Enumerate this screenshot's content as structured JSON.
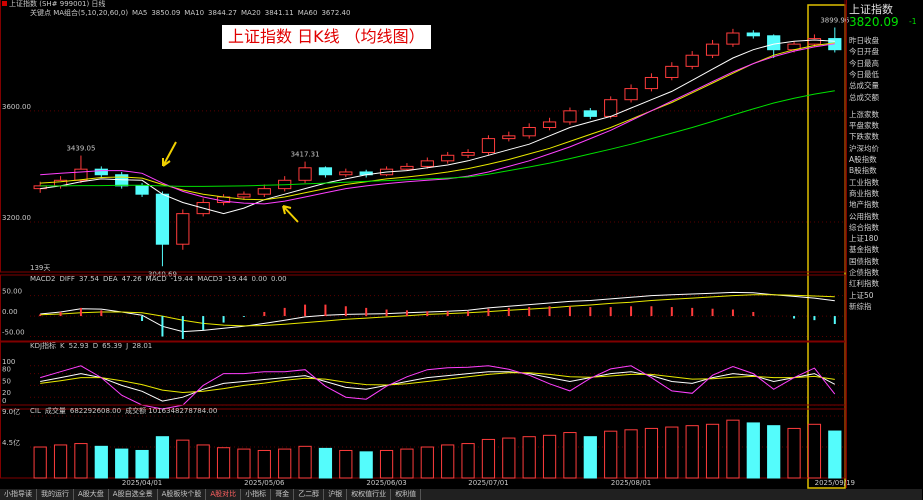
{
  "header": "上证指数 (SH# 999001) 日线",
  "overlay_title": "上证指数 日K线 （均线图）",
  "quote": {
    "name": "上证指数",
    "price": "3820.09",
    "change": "-1"
  },
  "quote_items": [
    "昨日收盘",
    "今日开盘",
    "今日最高",
    "今日最低",
    "总成交量",
    "总成交额",
    "上涨家数",
    "平盘家数",
    "下跌家数",
    "沪深均价",
    "A股指数",
    "B股指数",
    "工业指数",
    "商业指数",
    "地产指数",
    "公用指数",
    "综合指数",
    "上证180",
    "基金指数",
    "国债指数",
    "企债指数",
    "红利指数",
    "上证50",
    "新综指"
  ],
  "tabs": [
    "小指导读",
    "我的运行",
    "A股大盘",
    "A股自选全景",
    "A股板块个股",
    "A股对比",
    "小指标",
    "哥金",
    "乙二醇",
    "沪银",
    "权权值行业",
    "权利值"
  ],
  "chart_data": [
    {
      "type": "candlestick",
      "legend_title": "关键点 MA组合(5,10,20,60,0)",
      "up_color": "#ff3c3c",
      "down_color": "#54fcfc",
      "open": [
        3320,
        3330,
        3350,
        3390,
        3370,
        3330,
        3300,
        3120,
        3230,
        3270,
        3290,
        3300,
        3320,
        3350,
        3395,
        3370,
        3380,
        3370,
        3390,
        3400,
        3420,
        3440,
        3450,
        3500,
        3510,
        3540,
        3560,
        3600,
        3580,
        3640,
        3680,
        3720,
        3760,
        3800,
        3840,
        3880,
        3870,
        3820,
        3840,
        3860
      ],
      "high": [
        3345,
        3365,
        3439.05,
        3400,
        3380,
        3340,
        3310,
        3245,
        3285,
        3300,
        3310,
        3335,
        3365,
        3417.31,
        3400,
        3392,
        3388,
        3400,
        3412,
        3432,
        3452,
        3462,
        3512,
        3525,
        3555,
        3575,
        3612,
        3610,
        3652,
        3695,
        3735,
        3775,
        3815,
        3855,
        3895,
        3890,
        3875,
        3850,
        3875,
        3899.96
      ],
      "low": [
        3305,
        3320,
        3340,
        3360,
        3320,
        3290,
        3040.69,
        3100,
        3220,
        3260,
        3280,
        3290,
        3310,
        3340,
        3360,
        3362,
        3360,
        3365,
        3385,
        3392,
        3410,
        3430,
        3440,
        3490,
        3500,
        3530,
        3550,
        3570,
        3572,
        3630,
        3670,
        3710,
        3750,
        3790,
        3830,
        3860,
        3790,
        3810,
        3830,
        3810
      ],
      "close": [
        3330,
        3350,
        3390,
        3370,
        3330,
        3300,
        3120,
        3230,
        3270,
        3290,
        3300,
        3320,
        3350,
        3395,
        3370,
        3380,
        3370,
        3390,
        3400,
        3420,
        3440,
        3450,
        3500,
        3510,
        3540,
        3560,
        3600,
        3580,
        3640,
        3680,
        3720,
        3760,
        3800,
        3840,
        3880,
        3870,
        3820,
        3840,
        3860,
        3820
      ],
      "series": [
        {
          "name": "MA5",
          "color": "#ffffff",
          "legend_value": "3850.09",
          "values": [
            3320,
            3330,
            3345,
            3355,
            3352,
            3350,
            3300,
            3270,
            3250,
            3230,
            3250,
            3280,
            3300,
            3320,
            3340,
            3355,
            3370,
            3380,
            3385,
            3395,
            3405,
            3420,
            3440,
            3460,
            3480,
            3510,
            3540,
            3560,
            3580,
            3610,
            3640,
            3670,
            3710,
            3750,
            3790,
            3820,
            3840,
            3850,
            3855,
            3850.09
          ]
        },
        {
          "name": "MA10",
          "color": "#e8e800",
          "legend_value": "3844.27",
          "values": [
            3340,
            3345,
            3352,
            3360,
            3362,
            3358,
            3335,
            3315,
            3300,
            3290,
            3282,
            3280,
            3290,
            3305,
            3320,
            3335,
            3345,
            3355,
            3362,
            3370,
            3380,
            3392,
            3408,
            3425,
            3445,
            3465,
            3490,
            3515,
            3540,
            3570,
            3600,
            3630,
            3665,
            3700,
            3735,
            3770,
            3800,
            3820,
            3835,
            3844.27
          ]
        },
        {
          "name": "MA20",
          "color": "#ff40ff",
          "legend_value": "3841.11",
          "values": [
            3370,
            3375,
            3380,
            3385,
            3385,
            3375,
            3340,
            3310,
            3290,
            3275,
            3268,
            3265,
            3275,
            3290,
            3305,
            3320,
            3330,
            3338,
            3345,
            3350,
            3355,
            3365,
            3380,
            3400,
            3420,
            3445,
            3470,
            3500,
            3530,
            3565,
            3600,
            3635,
            3670,
            3705,
            3740,
            3770,
            3795,
            3815,
            3830,
            3841.11
          ]
        },
        {
          "name": "MA60",
          "color": "#00e000",
          "legend_value": "3672.40",
          "values": [
            3330,
            3330,
            3331,
            3331,
            3332,
            3332,
            3330,
            3328,
            3328,
            3329,
            3330,
            3332,
            3334,
            3337,
            3340,
            3343,
            3346,
            3349,
            3352,
            3355,
            3358,
            3362,
            3372,
            3385,
            3398,
            3412,
            3428,
            3445,
            3462,
            3480,
            3500,
            3520,
            3540,
            3562,
            3585,
            3607,
            3628,
            3645,
            3660,
            3672.4
          ]
        }
      ],
      "ylim": [
        3020,
        3970
      ],
      "yticks": [
        {
          "value": 3600,
          "label": "3600.00"
        },
        {
          "value": 3200,
          "label": "3200.00"
        }
      ],
      "annotations": [
        "139天"
      ]
    },
    {
      "type": "macd",
      "legend_title": "MACD2",
      "legend_extra": [
        "MACD3 -19.44",
        "0.00",
        "0.00"
      ],
      "series": [
        {
          "name": "DIFF",
          "style": "line",
          "color": "#ffffff",
          "legend_value": "37.54",
          "values": [
            5,
            10,
            18,
            17,
            10,
            2,
            -25,
            -38,
            -35,
            -30,
            -25,
            -18,
            -10,
            -2,
            2,
            4,
            5,
            6,
            8,
            10,
            12,
            14,
            20,
            24,
            28,
            32,
            36,
            38,
            42,
            46,
            50,
            52,
            54,
            56,
            58,
            57,
            52,
            48,
            44,
            37.54
          ]
        },
        {
          "name": "DEA",
          "style": "line",
          "color": "#e8e800",
          "legend_value": "47.26",
          "values": [
            3,
            5,
            8,
            10,
            10,
            8,
            0,
            -10,
            -18,
            -22,
            -24,
            -23,
            -20,
            -16,
            -12,
            -8,
            -5,
            -2,
            1,
            4,
            6,
            8,
            11,
            14,
            17,
            20,
            24,
            27,
            31,
            34,
            38,
            41,
            44,
            47,
            50,
            52,
            52,
            51,
            49,
            47.26
          ]
        },
        {
          "name": "MACD",
          "style": "bar",
          "color": "#ff40ff",
          "up_color": "#ff3c3c",
          "down_color": "#54fcfc",
          "legend_value": "-19.44",
          "values": [
            4,
            10,
            20,
            14,
            0,
            -12,
            -50,
            -56,
            -34,
            -16,
            -2,
            10,
            20,
            28,
            28,
            24,
            20,
            16,
            14,
            12,
            12,
            12,
            18,
            20,
            22,
            24,
            24,
            22,
            22,
            24,
            24,
            22,
            20,
            18,
            16,
            10,
            0,
            -6,
            -10,
            -19.44
          ]
        }
      ],
      "ylim": [
        -61,
        76
      ],
      "yticks": [
        {
          "value": 50,
          "label": "50.00"
        },
        {
          "value": 0,
          "label": "0.00"
        },
        {
          "value": -50,
          "label": "-50.00"
        }
      ]
    },
    {
      "type": "line",
      "legend_title": "KDJ指标",
      "series": [
        {
          "name": "K",
          "color": "#ffffff",
          "legend_value": "52.93",
          "values": [
            60,
            70,
            80,
            70,
            50,
            35,
            10,
            20,
            40,
            55,
            60,
            65,
            70,
            75,
            60,
            45,
            40,
            50,
            60,
            70,
            75,
            80,
            85,
            85,
            80,
            70,
            60,
            70,
            80,
            85,
            75,
            60,
            55,
            70,
            80,
            75,
            60,
            70,
            80,
            52.93
          ]
        },
        {
          "name": "D",
          "color": "#e8e800",
          "legend_value": "65.39",
          "values": [
            55,
            62,
            70,
            70,
            62,
            52,
            38,
            32,
            35,
            42,
            50,
            56,
            63,
            68,
            66,
            58,
            52,
            51,
            54,
            60,
            66,
            72,
            78,
            82,
            82,
            78,
            72,
            71,
            74,
            78,
            78,
            72,
            66,
            67,
            71,
            73,
            70,
            70,
            73,
            65.39
          ]
        },
        {
          "name": "J",
          "color": "#ff40ff",
          "legend_value": "28.01",
          "values": [
            70,
            85,
            100,
            70,
            25,
            0,
            -10,
            0,
            50,
            80,
            80,
            85,
            85,
            90,
            48,
            20,
            15,
            48,
            72,
            90,
            95,
            96,
            100,
            91,
            76,
            54,
            36,
            68,
            92,
            100,
            70,
            36,
            30,
            76,
            98,
            80,
            40,
            70,
            94,
            28.01
          ]
        }
      ],
      "ylim": [
        -10,
        135
      ],
      "yticks": [
        100,
        80,
        50,
        20,
        0
      ]
    },
    {
      "type": "bar",
      "legend_title": "CIL",
      "legend_extra": [
        "成交额 1016348278784.00"
      ],
      "categories": [
        null,
        null,
        null,
        null,
        null,
        "2025/04/01",
        null,
        null,
        null,
        null,
        null,
        "2025/05/06",
        null,
        null,
        null,
        null,
        null,
        "2025/06/03",
        null,
        null,
        null,
        null,
        "2025/07/01",
        null,
        null,
        null,
        null,
        null,
        null,
        "2025/08/01",
        null,
        null,
        null,
        null,
        null,
        null,
        null,
        null,
        null,
        "2025/09/19"
      ],
      "series": [
        {
          "name": "成交量",
          "color": "#54fcfc",
          "legend_value": "682292608.00",
          "values": [
            4.5,
            4.8,
            5.0,
            4.6,
            4.2,
            4.0,
            6.0,
            5.5,
            4.8,
            4.4,
            4.2,
            4.0,
            4.2,
            4.6,
            4.3,
            4.0,
            3.8,
            4.0,
            4.2,
            4.5,
            4.8,
            5.0,
            5.6,
            5.8,
            6.0,
            6.2,
            6.6,
            6.0,
            6.8,
            7.0,
            7.2,
            7.4,
            7.6,
            7.8,
            8.4,
            8.0,
            7.6,
            7.2,
            7.8,
            6.82
          ]
        }
      ],
      "ylim": [
        0,
        9.15
      ],
      "yticks": [
        {
          "value": 9,
          "label": "9.0亿"
        },
        {
          "value": 4.5,
          "label": "4.5亿"
        }
      ]
    }
  ]
}
